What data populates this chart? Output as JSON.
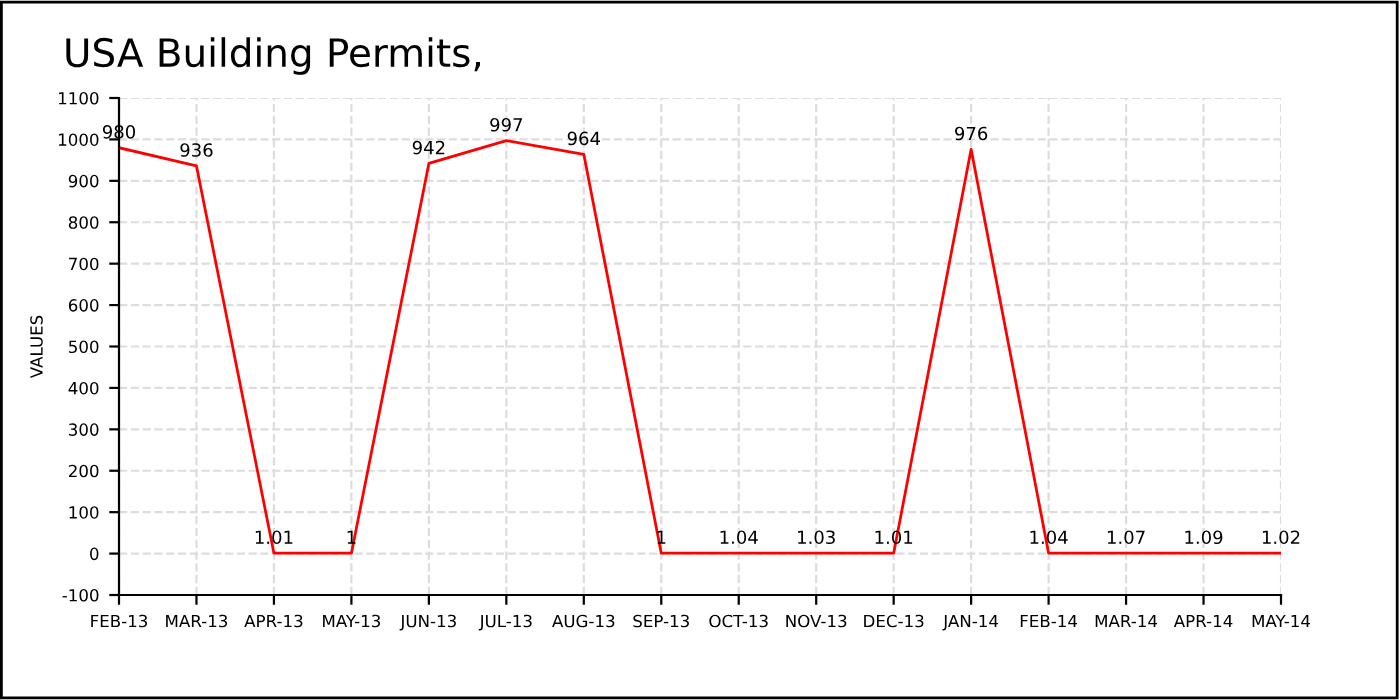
{
  "chart_data": {
    "type": "line",
    "title": "USA Building Permits,",
    "ylabel": "VALUES",
    "categories": [
      "FEB-13",
      "MAR-13",
      "APR-13",
      "MAY-13",
      "JUN-13",
      "JUL-13",
      "AUG-13",
      "SEP-13",
      "OCT-13",
      "NOV-13",
      "DEC-13",
      "JAN-14",
      "FEB-14",
      "MAR-14",
      "APR-14",
      "MAY-14"
    ],
    "series": [
      {
        "color": "#ff0000",
        "values": [
          980,
          936,
          1.01,
          1,
          942,
          997,
          964,
          1,
          1.04,
          1.03,
          1.01,
          976,
          1.04,
          1.07,
          1.09,
          1.02
        ]
      }
    ],
    "ylim": [
      -100,
      1100
    ],
    "yticks": [
      -100,
      0,
      100,
      200,
      300,
      400,
      500,
      600,
      700,
      800,
      900,
      1000,
      1100
    ],
    "grid": true,
    "data_labels": true,
    "line_style": "solid",
    "marker": "none"
  }
}
